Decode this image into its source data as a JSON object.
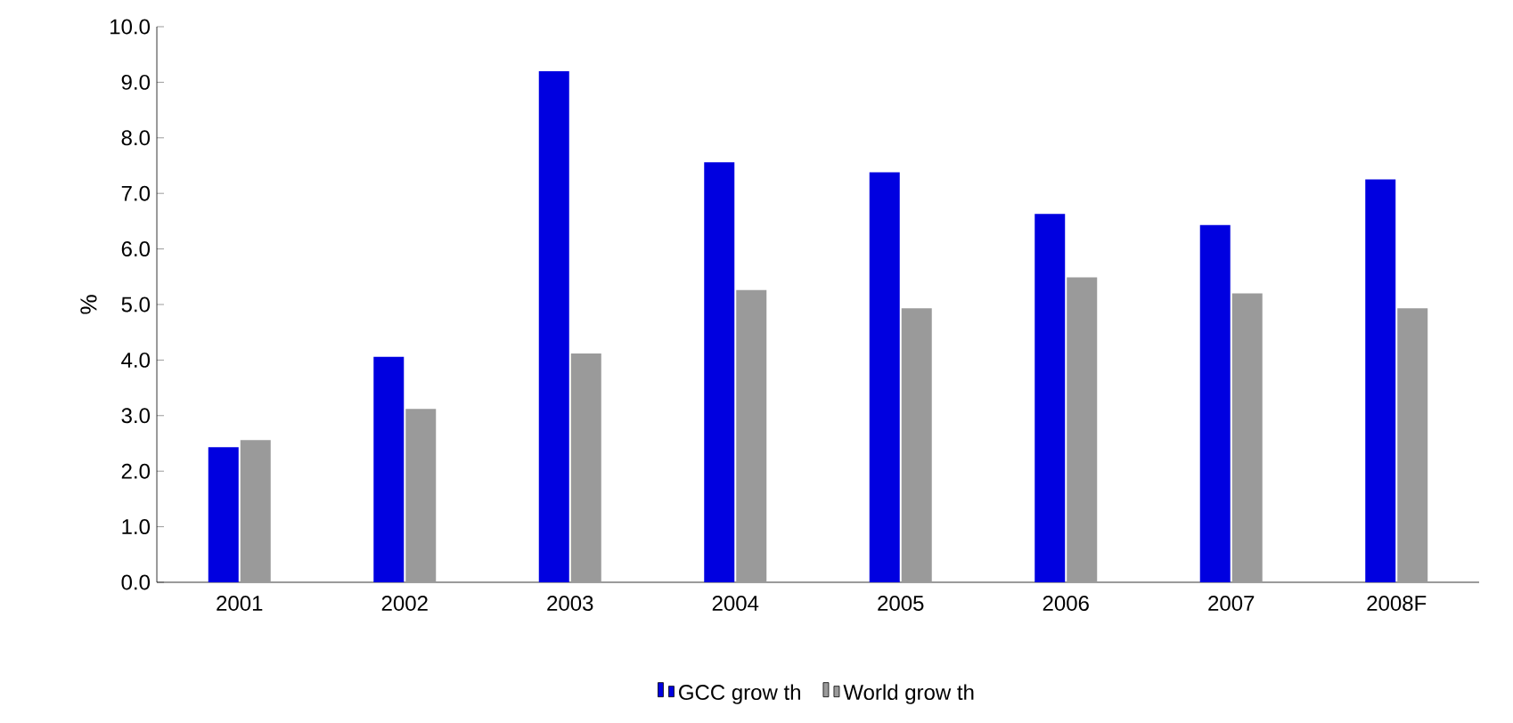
{
  "chart_data": {
    "type": "bar",
    "ylabel": "%",
    "categories": [
      "2001",
      "2002",
      "2003",
      "2004",
      "2005",
      "2006",
      "2007",
      "2008F"
    ],
    "series": [
      {
        "name": "GCC grow th",
        "color": "#0000e0",
        "values": [
          2.43,
          4.06,
          9.2,
          7.56,
          7.38,
          6.63,
          6.43,
          7.25
        ]
      },
      {
        "name": "World grow th",
        "color": "#9a9a9a",
        "values": [
          2.56,
          3.12,
          4.12,
          5.26,
          4.93,
          5.49,
          5.2,
          4.93
        ]
      }
    ],
    "ylim": [
      0,
      10
    ],
    "yticks": [
      {
        "value": 0,
        "label": "0.0"
      },
      {
        "value": 1,
        "label": "1.0"
      },
      {
        "value": 2,
        "label": "2.0"
      },
      {
        "value": 3,
        "label": "3.0"
      },
      {
        "value": 4,
        "label": "4.0"
      },
      {
        "value": 5,
        "label": "5.0"
      },
      {
        "value": 6,
        "label": "6.0"
      },
      {
        "value": 7,
        "label": "7.0"
      },
      {
        "value": 8,
        "label": "8.0"
      },
      {
        "value": 9,
        "label": "9.0"
      },
      {
        "value": 10,
        "label": "10.0"
      }
    ],
    "grid": false,
    "legend": "bottom"
  }
}
